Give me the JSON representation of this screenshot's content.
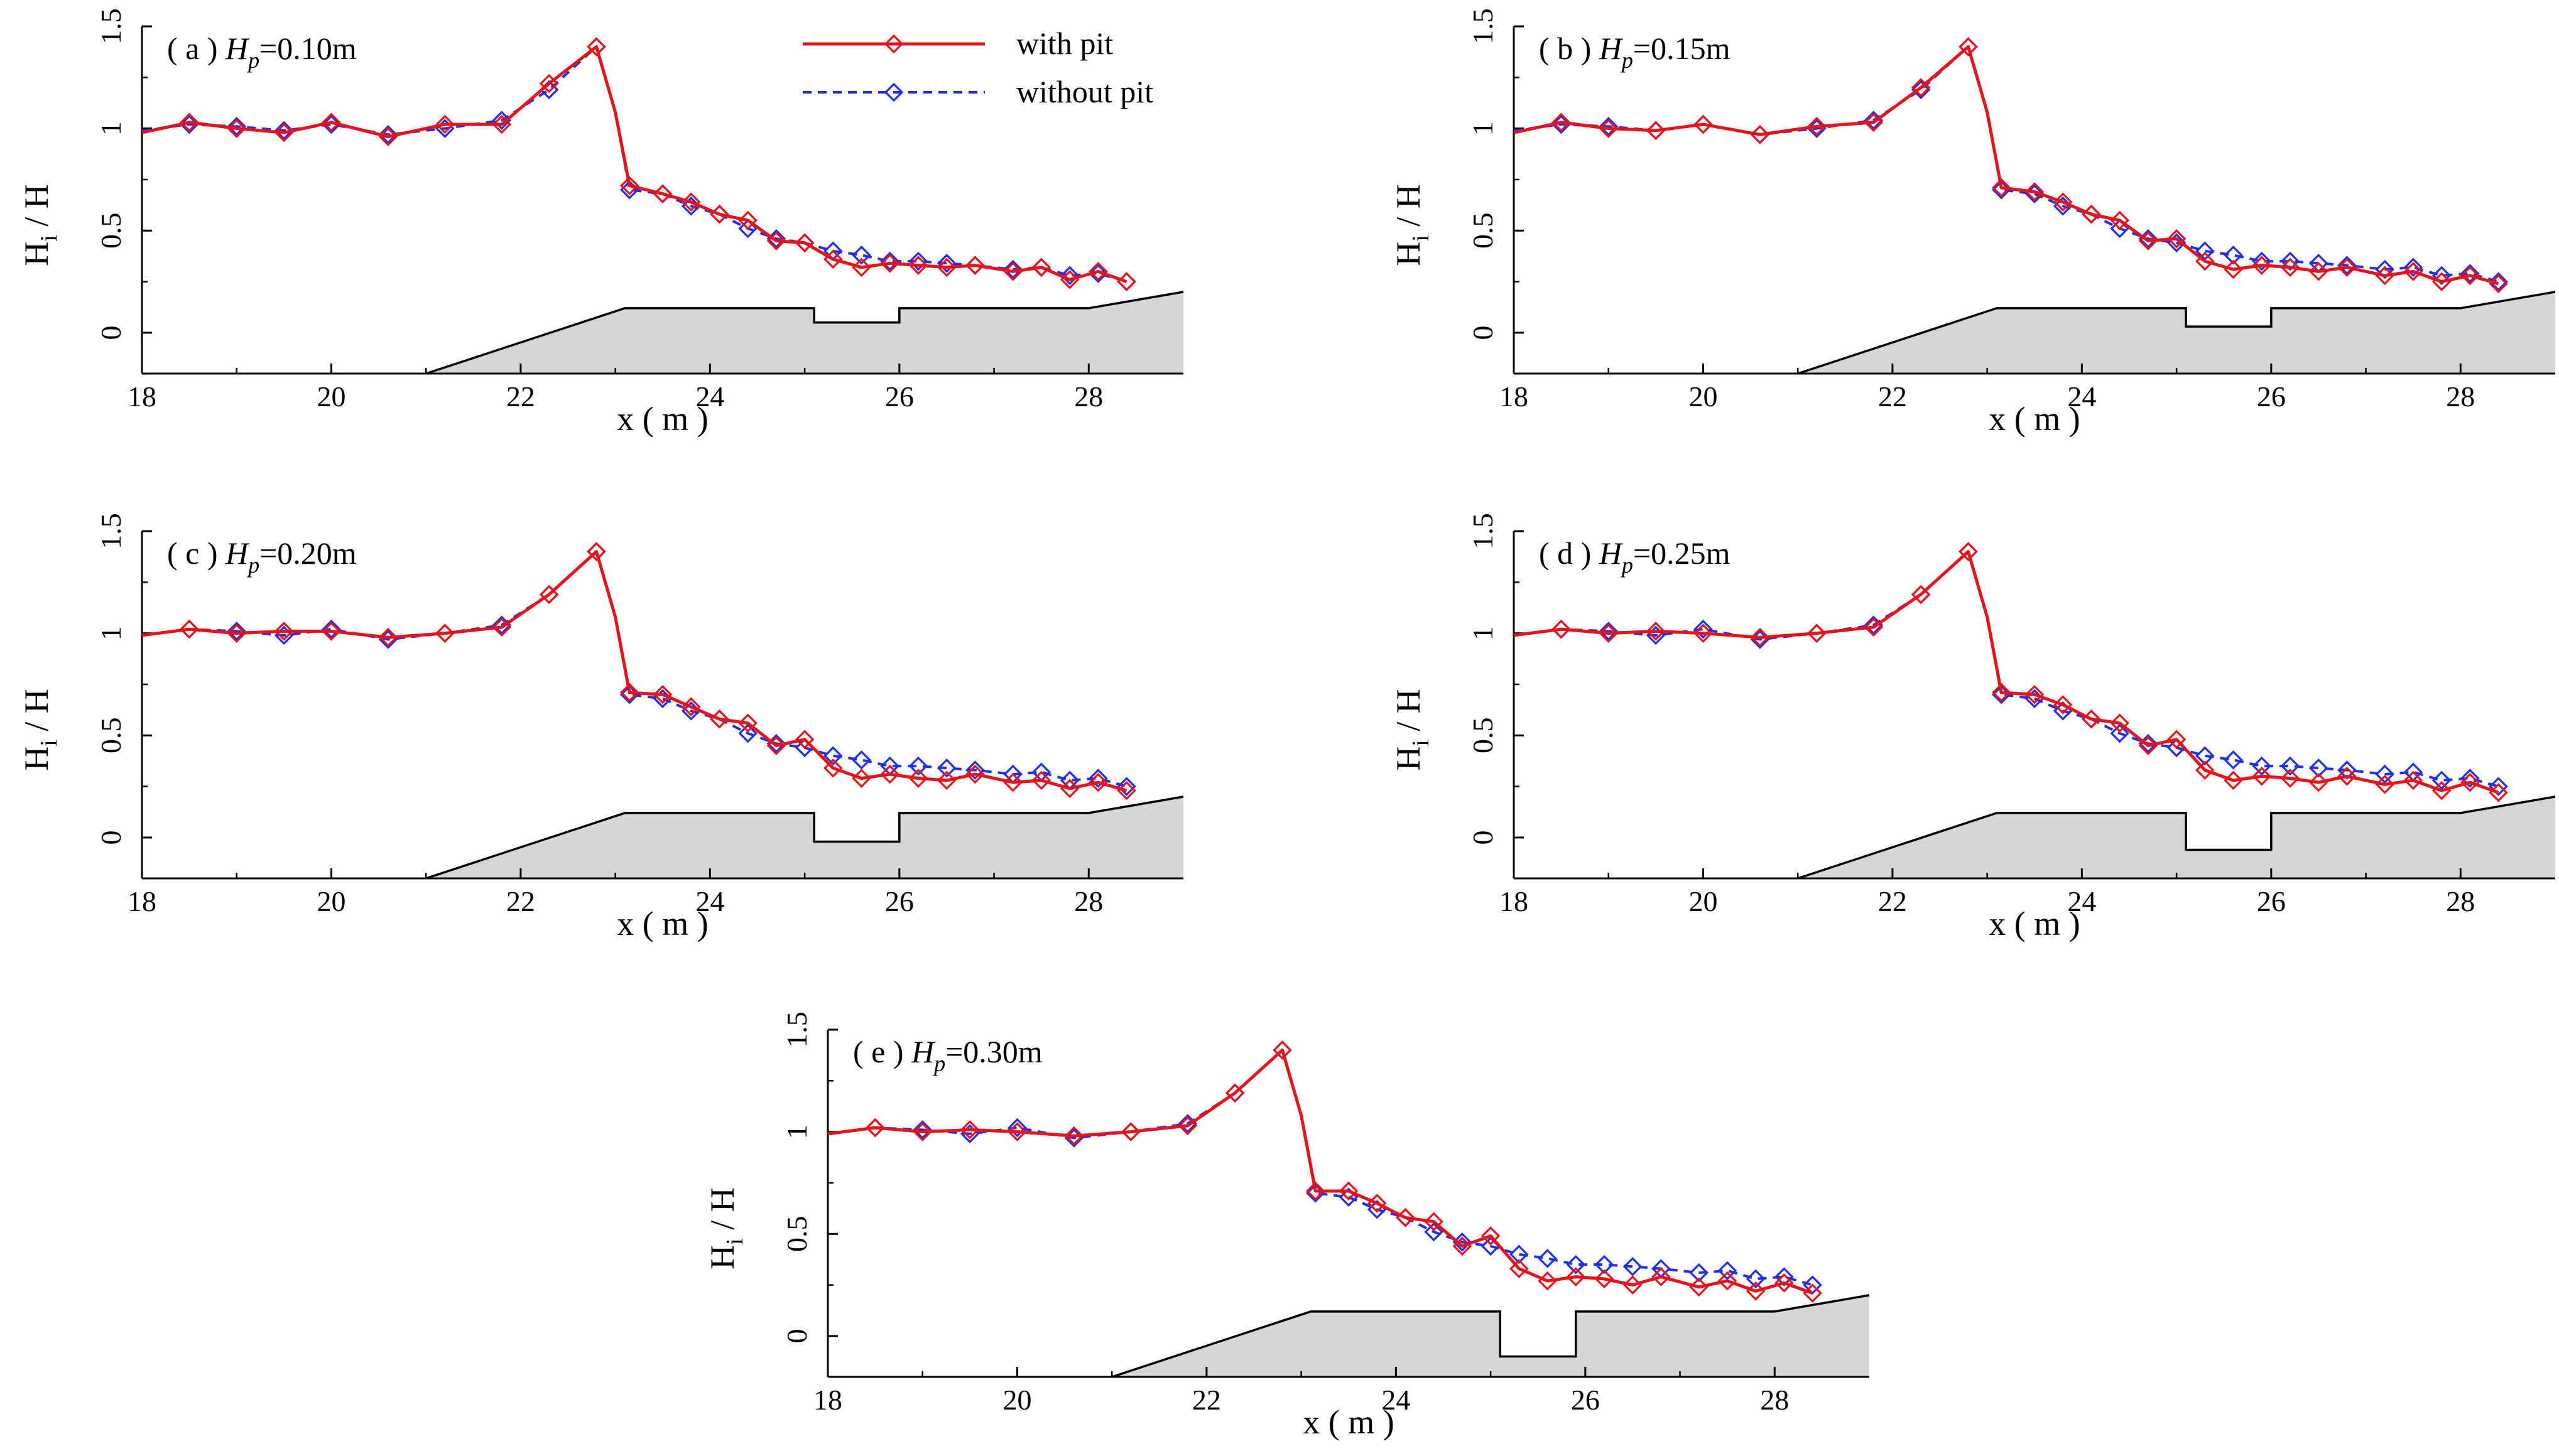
{
  "legend": {
    "with_label": "with pit",
    "without_label": "without pit",
    "with_color": "#e8121a",
    "without_color": "#1f2ee8"
  },
  "colors": {
    "bed_fill": "#d6d6d6",
    "bed_line": "#000000"
  },
  "chart_data": [
    {
      "type": "line",
      "panel": "a",
      "title_prefix": "( a )",
      "title_var": "H",
      "title_sub": "p",
      "title_suffix": "=0.10m",
      "pit_height": 0.1,
      "xlabel": "x ( m )",
      "ylabel": "Hi / H",
      "ylabel_main": "H",
      "ylabel_sub": "i",
      "ylabel_rest": " / H",
      "xlim": [
        18,
        29
      ],
      "ylim": [
        -0.2,
        1.5
      ],
      "xticks": [
        18,
        20,
        22,
        24,
        26,
        28
      ],
      "yticks": [
        0,
        0.5,
        1,
        1.5
      ],
      "ytick_labels": [
        "0",
        "0.5",
        "1",
        "1.5"
      ],
      "bathymetry": {
        "x": [
          18,
          21,
          23.1,
          25.1,
          25.1,
          26.0,
          26.0,
          28.0,
          29
        ],
        "y": [
          -0.2,
          -0.2,
          0.12,
          0.12,
          0.05,
          0.05,
          0.12,
          0.12,
          0.2
        ]
      },
      "series": [
        {
          "name": "with pit",
          "x": [
            18.0,
            18.5,
            19.0,
            19.5,
            20.0,
            20.6,
            21.2,
            21.8,
            22.3,
            22.8,
            23.0,
            23.15,
            23.5,
            23.8,
            24.1,
            24.4,
            24.7,
            25.0,
            25.3,
            25.6,
            25.9,
            26.2,
            26.5,
            26.8,
            27.2,
            27.5,
            27.8,
            28.1,
            28.4
          ],
          "y": [
            0.98,
            1.03,
            1.0,
            0.98,
            1.03,
            0.96,
            1.02,
            1.02,
            1.22,
            1.4,
            1.08,
            0.72,
            0.68,
            0.64,
            0.58,
            0.55,
            0.45,
            0.44,
            0.36,
            0.32,
            0.34,
            0.33,
            0.32,
            0.33,
            0.3,
            0.32,
            0.26,
            0.3,
            0.25
          ]
        },
        {
          "name": "without pit",
          "x": [
            18.0,
            18.5,
            19.0,
            19.5,
            20.0,
            20.6,
            21.2,
            21.8,
            22.3,
            22.8,
            23.0,
            23.15,
            23.5,
            23.8,
            24.1,
            24.4,
            24.7,
            25.0,
            25.3,
            25.6,
            25.9,
            26.2,
            26.5,
            26.8,
            27.2,
            27.5,
            27.8,
            28.1,
            28.4
          ],
          "y": [
            0.99,
            1.02,
            1.01,
            0.99,
            1.02,
            0.97,
            1.0,
            1.04,
            1.19,
            1.4,
            1.08,
            0.7,
            0.68,
            0.62,
            0.58,
            0.51,
            0.46,
            0.44,
            0.4,
            0.38,
            0.35,
            0.35,
            0.34,
            0.33,
            0.31,
            0.32,
            0.28,
            0.29,
            0.25
          ]
        }
      ]
    },
    {
      "type": "line",
      "panel": "b",
      "title_prefix": "( b )",
      "title_var": "H",
      "title_sub": "p",
      "title_suffix": "=0.15m",
      "pit_height": 0.15,
      "xlabel": "x ( m )",
      "ylabel": "Hi / H",
      "ylabel_main": "H",
      "ylabel_sub": "i",
      "ylabel_rest": " / H",
      "xlim": [
        18,
        29
      ],
      "ylim": [
        -0.2,
        1.5
      ],
      "xticks": [
        18,
        20,
        22,
        24,
        26,
        28
      ],
      "yticks": [
        0,
        0.5,
        1,
        1.5
      ],
      "ytick_labels": [
        "0",
        "0.5",
        "1",
        "1.5"
      ],
      "bathymetry": {
        "x": [
          18,
          21,
          23.1,
          25.1,
          25.1,
          26.0,
          26.0,
          28.0,
          29
        ],
        "y": [
          -0.2,
          -0.2,
          0.12,
          0.12,
          0.03,
          0.03,
          0.12,
          0.12,
          0.2
        ]
      },
      "series": [
        {
          "name": "with pit",
          "x": [
            18.0,
            18.5,
            19.0,
            19.5,
            20.0,
            20.6,
            21.2,
            21.8,
            22.3,
            22.8,
            23.0,
            23.15,
            23.5,
            23.8,
            24.1,
            24.4,
            24.7,
            25.0,
            25.3,
            25.6,
            25.9,
            26.2,
            26.5,
            26.8,
            27.2,
            27.5,
            27.8,
            28.1,
            28.4
          ],
          "y": [
            0.98,
            1.03,
            1.0,
            0.99,
            1.02,
            0.97,
            1.01,
            1.03,
            1.2,
            1.4,
            1.08,
            0.71,
            0.69,
            0.64,
            0.58,
            0.55,
            0.45,
            0.46,
            0.35,
            0.31,
            0.33,
            0.32,
            0.3,
            0.32,
            0.28,
            0.3,
            0.25,
            0.28,
            0.24
          ]
        },
        {
          "name": "without pit",
          "x": [
            18.0,
            18.5,
            19.0,
            19.5,
            20.0,
            20.6,
            21.2,
            21.8,
            22.3,
            22.8,
            23.0,
            23.15,
            23.5,
            23.8,
            24.1,
            24.4,
            24.7,
            25.0,
            25.3,
            25.6,
            25.9,
            26.2,
            26.5,
            26.8,
            27.2,
            27.5,
            27.8,
            28.1,
            28.4
          ],
          "y": [
            0.99,
            1.02,
            1.01,
            0.99,
            1.02,
            0.97,
            1.0,
            1.04,
            1.19,
            1.4,
            1.08,
            0.7,
            0.68,
            0.62,
            0.58,
            0.51,
            0.46,
            0.44,
            0.4,
            0.38,
            0.35,
            0.35,
            0.34,
            0.33,
            0.31,
            0.32,
            0.28,
            0.29,
            0.25
          ]
        }
      ]
    },
    {
      "type": "line",
      "panel": "c",
      "title_prefix": "( c )",
      "title_var": "H",
      "title_sub": "p",
      "title_suffix": "=0.20m",
      "pit_height": 0.2,
      "xlabel": "x ( m )",
      "ylabel": "Hi / H",
      "ylabel_main": "H",
      "ylabel_sub": "i",
      "ylabel_rest": " / H",
      "xlim": [
        18,
        29
      ],
      "ylim": [
        -0.2,
        1.5
      ],
      "xticks": [
        18,
        20,
        22,
        24,
        26,
        28
      ],
      "yticks": [
        0,
        0.5,
        1,
        1.5
      ],
      "ytick_labels": [
        "0",
        "0.5",
        "1",
        "1.5"
      ],
      "bathymetry": {
        "x": [
          18,
          21,
          23.1,
          25.1,
          25.1,
          26.0,
          26.0,
          28.0,
          29
        ],
        "y": [
          -0.2,
          -0.2,
          0.12,
          0.12,
          -0.02,
          -0.02,
          0.12,
          0.12,
          0.2
        ]
      },
      "series": [
        {
          "name": "with pit",
          "x": [
            18.0,
            18.5,
            19.0,
            19.5,
            20.0,
            20.6,
            21.2,
            21.8,
            22.3,
            22.8,
            23.0,
            23.15,
            23.5,
            23.8,
            24.1,
            24.4,
            24.7,
            25.0,
            25.3,
            25.6,
            25.9,
            26.2,
            26.5,
            26.8,
            27.2,
            27.5,
            27.8,
            28.1,
            28.4
          ],
          "y": [
            0.99,
            1.02,
            1.0,
            1.01,
            1.01,
            0.98,
            1.0,
            1.03,
            1.19,
            1.4,
            1.08,
            0.71,
            0.7,
            0.64,
            0.58,
            0.56,
            0.45,
            0.48,
            0.34,
            0.29,
            0.31,
            0.29,
            0.28,
            0.31,
            0.27,
            0.28,
            0.24,
            0.27,
            0.23
          ]
        },
        {
          "name": "without pit",
          "x": [
            18.0,
            18.5,
            19.0,
            19.5,
            20.0,
            20.6,
            21.2,
            21.8,
            22.3,
            22.8,
            23.0,
            23.15,
            23.5,
            23.8,
            24.1,
            24.4,
            24.7,
            25.0,
            25.3,
            25.6,
            25.9,
            26.2,
            26.5,
            26.8,
            27.2,
            27.5,
            27.8,
            28.1,
            28.4
          ],
          "y": [
            0.99,
            1.02,
            1.01,
            0.99,
            1.02,
            0.97,
            1.0,
            1.04,
            1.19,
            1.4,
            1.08,
            0.7,
            0.68,
            0.62,
            0.58,
            0.51,
            0.46,
            0.44,
            0.4,
            0.38,
            0.35,
            0.35,
            0.34,
            0.33,
            0.31,
            0.32,
            0.28,
            0.29,
            0.25
          ]
        }
      ]
    },
    {
      "type": "line",
      "panel": "d",
      "title_prefix": "( d )",
      "title_var": "H",
      "title_sub": "p",
      "title_suffix": "=0.25m",
      "pit_height": 0.25,
      "xlabel": "x ( m )",
      "ylabel": "Hi / H",
      "ylabel_main": "H",
      "ylabel_sub": "i",
      "ylabel_rest": " / H",
      "xlim": [
        18,
        29
      ],
      "ylim": [
        -0.2,
        1.5
      ],
      "xticks": [
        18,
        20,
        22,
        24,
        26,
        28
      ],
      "yticks": [
        0,
        0.5,
        1,
        1.5
      ],
      "ytick_labels": [
        "0",
        "0.5",
        "1",
        "1.5"
      ],
      "bathymetry": {
        "x": [
          18,
          21,
          23.1,
          25.1,
          25.1,
          26.0,
          26.0,
          28.0,
          29
        ],
        "y": [
          -0.2,
          -0.2,
          0.12,
          0.12,
          -0.06,
          -0.06,
          0.12,
          0.12,
          0.2
        ]
      },
      "series": [
        {
          "name": "with pit",
          "x": [
            18.0,
            18.5,
            19.0,
            19.5,
            20.0,
            20.6,
            21.2,
            21.8,
            22.3,
            22.8,
            23.0,
            23.15,
            23.5,
            23.8,
            24.1,
            24.4,
            24.7,
            25.0,
            25.3,
            25.6,
            25.9,
            26.2,
            26.5,
            26.8,
            27.2,
            27.5,
            27.8,
            28.1,
            28.4
          ],
          "y": [
            0.99,
            1.02,
            1.0,
            1.01,
            1.0,
            0.98,
            1.0,
            1.03,
            1.19,
            1.4,
            1.08,
            0.71,
            0.7,
            0.65,
            0.58,
            0.56,
            0.45,
            0.48,
            0.33,
            0.28,
            0.3,
            0.29,
            0.27,
            0.3,
            0.26,
            0.28,
            0.23,
            0.27,
            0.22
          ]
        },
        {
          "name": "without pit",
          "x": [
            18.0,
            18.5,
            19.0,
            19.5,
            20.0,
            20.6,
            21.2,
            21.8,
            22.3,
            22.8,
            23.0,
            23.15,
            23.5,
            23.8,
            24.1,
            24.4,
            24.7,
            25.0,
            25.3,
            25.6,
            25.9,
            26.2,
            26.5,
            26.8,
            27.2,
            27.5,
            27.8,
            28.1,
            28.4
          ],
          "y": [
            0.99,
            1.02,
            1.01,
            0.99,
            1.02,
            0.97,
            1.0,
            1.04,
            1.19,
            1.4,
            1.08,
            0.7,
            0.68,
            0.62,
            0.58,
            0.51,
            0.46,
            0.44,
            0.4,
            0.38,
            0.35,
            0.35,
            0.34,
            0.33,
            0.31,
            0.32,
            0.28,
            0.29,
            0.25
          ]
        }
      ]
    },
    {
      "type": "line",
      "panel": "e",
      "title_prefix": "( e )",
      "title_var": "H",
      "title_sub": "p",
      "title_suffix": "=0.30m",
      "pit_height": 0.3,
      "xlabel": "x ( m )",
      "ylabel": "Hi / H",
      "ylabel_main": "H",
      "ylabel_sub": "i",
      "ylabel_rest": " / H",
      "xlim": [
        18,
        29
      ],
      "ylim": [
        -0.2,
        1.5
      ],
      "xticks": [
        18,
        20,
        22,
        24,
        26,
        28
      ],
      "yticks": [
        0,
        0.5,
        1,
        1.5
      ],
      "ytick_labels": [
        "0",
        "0.5",
        "1",
        "1.5"
      ],
      "bathymetry": {
        "x": [
          18,
          21,
          23.1,
          25.1,
          25.1,
          25.9,
          25.9,
          28.0,
          29
        ],
        "y": [
          -0.2,
          -0.2,
          0.12,
          0.12,
          -0.1,
          -0.1,
          0.12,
          0.12,
          0.2
        ]
      },
      "series": [
        {
          "name": "with pit",
          "x": [
            18.0,
            18.5,
            19.0,
            19.5,
            20.0,
            20.6,
            21.2,
            21.8,
            22.3,
            22.8,
            23.0,
            23.15,
            23.5,
            23.8,
            24.1,
            24.4,
            24.7,
            25.0,
            25.3,
            25.6,
            25.9,
            26.2,
            26.5,
            26.8,
            27.2,
            27.5,
            27.8,
            28.1,
            28.4
          ],
          "y": [
            0.99,
            1.02,
            1.0,
            1.01,
            1.0,
            0.98,
            1.0,
            1.03,
            1.19,
            1.4,
            1.08,
            0.71,
            0.71,
            0.65,
            0.58,
            0.56,
            0.44,
            0.49,
            0.33,
            0.27,
            0.29,
            0.28,
            0.25,
            0.29,
            0.24,
            0.27,
            0.22,
            0.26,
            0.21
          ]
        },
        {
          "name": "without pit",
          "x": [
            18.0,
            18.5,
            19.0,
            19.5,
            20.0,
            20.6,
            21.2,
            21.8,
            22.3,
            22.8,
            23.0,
            23.15,
            23.5,
            23.8,
            24.1,
            24.4,
            24.7,
            25.0,
            25.3,
            25.6,
            25.9,
            26.2,
            26.5,
            26.8,
            27.2,
            27.5,
            27.8,
            28.1,
            28.4
          ],
          "y": [
            0.99,
            1.02,
            1.01,
            0.99,
            1.02,
            0.97,
            1.0,
            1.04,
            1.19,
            1.4,
            1.08,
            0.7,
            0.68,
            0.62,
            0.58,
            0.51,
            0.46,
            0.44,
            0.4,
            0.38,
            0.35,
            0.35,
            0.34,
            0.33,
            0.31,
            0.32,
            0.28,
            0.29,
            0.25
          ]
        }
      ]
    }
  ]
}
